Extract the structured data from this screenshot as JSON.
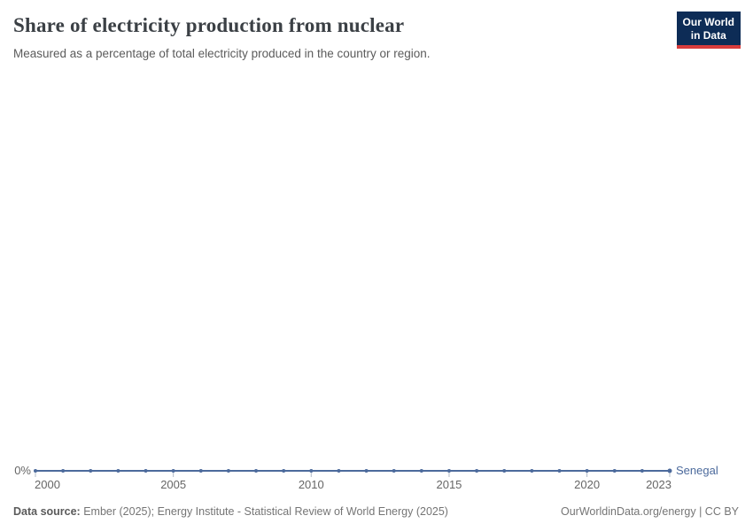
{
  "header": {
    "title": "Share of electricity production from nuclear",
    "subtitle": "Measured as a percentage of total electricity produced in the country or region.",
    "logo": {
      "line1": "Our World",
      "line2": "in Data"
    }
  },
  "chart_data": {
    "type": "line",
    "title": "Share of electricity production from nuclear",
    "x": [
      2000,
      2001,
      2002,
      2003,
      2004,
      2005,
      2006,
      2007,
      2008,
      2009,
      2010,
      2011,
      2012,
      2013,
      2014,
      2015,
      2016,
      2017,
      2018,
      2019,
      2020,
      2021,
      2022,
      2023
    ],
    "series": [
      {
        "name": "Senegal",
        "values": [
          0,
          0,
          0,
          0,
          0,
          0,
          0,
          0,
          0,
          0,
          0,
          0,
          0,
          0,
          0,
          0,
          0,
          0,
          0,
          0,
          0,
          0,
          0,
          0
        ]
      }
    ],
    "x_ticks": [
      2000,
      2005,
      2010,
      2015,
      2020,
      2023
    ],
    "y_axis": {
      "tick_labels": [
        "0%"
      ],
      "min": 0
    },
    "unit": "%",
    "grid": false,
    "legend_position": "end-of-line",
    "line_color": "#4C6A9C",
    "marker": "circle"
  },
  "footer": {
    "datasource_label": "Data source:",
    "datasource_text": "Ember (2025); Energy Institute - Statistical Review of World Energy (2025)",
    "rights": "OurWorldinData.org/energy | CC BY"
  },
  "colors": {
    "accent_line": "#4C6A9C",
    "tick": "#b3bcc9",
    "axis_text": "#666666",
    "logo_navy": "#0d2c56",
    "logo_red": "#d83c3c"
  }
}
